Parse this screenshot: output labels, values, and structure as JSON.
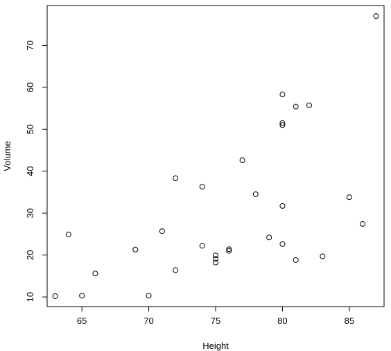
{
  "chart_data": {
    "type": "scatter",
    "title": "",
    "xlabel": "Height",
    "ylabel": "Volume",
    "xlim": [
      62.4,
      87.6
    ],
    "ylim": [
      7.7,
      79.5
    ],
    "xticks": [
      65,
      70,
      75,
      80,
      85
    ],
    "yticks": [
      10,
      20,
      30,
      40,
      50,
      60,
      70
    ],
    "marker": "open-circle",
    "grid": false,
    "points": [
      {
        "x": 63,
        "y": 10.2
      },
      {
        "x": 64,
        "y": 24.9
      },
      {
        "x": 65,
        "y": 10.3
      },
      {
        "x": 66,
        "y": 15.6
      },
      {
        "x": 69,
        "y": 21.3
      },
      {
        "x": 70,
        "y": 10.3
      },
      {
        "x": 71,
        "y": 25.7
      },
      {
        "x": 72,
        "y": 38.3
      },
      {
        "x": 72,
        "y": 16.4
      },
      {
        "x": 74,
        "y": 36.3
      },
      {
        "x": 74,
        "y": 22.2
      },
      {
        "x": 75,
        "y": 19.9
      },
      {
        "x": 75,
        "y": 19.1
      },
      {
        "x": 75,
        "y": 18.2
      },
      {
        "x": 76,
        "y": 21.4
      },
      {
        "x": 76,
        "y": 21.0
      },
      {
        "x": 77,
        "y": 42.6
      },
      {
        "x": 78,
        "y": 34.5
      },
      {
        "x": 79,
        "y": 24.2
      },
      {
        "x": 80,
        "y": 58.3
      },
      {
        "x": 80,
        "y": 51.5
      },
      {
        "x": 80,
        "y": 51.0
      },
      {
        "x": 80,
        "y": 31.7
      },
      {
        "x": 80,
        "y": 22.6
      },
      {
        "x": 81,
        "y": 55.4
      },
      {
        "x": 81,
        "y": 18.8
      },
      {
        "x": 82,
        "y": 55.7
      },
      {
        "x": 83,
        "y": 19.7
      },
      {
        "x": 85,
        "y": 33.8
      },
      {
        "x": 86,
        "y": 27.4
      },
      {
        "x": 87,
        "y": 77.0
      }
    ]
  }
}
